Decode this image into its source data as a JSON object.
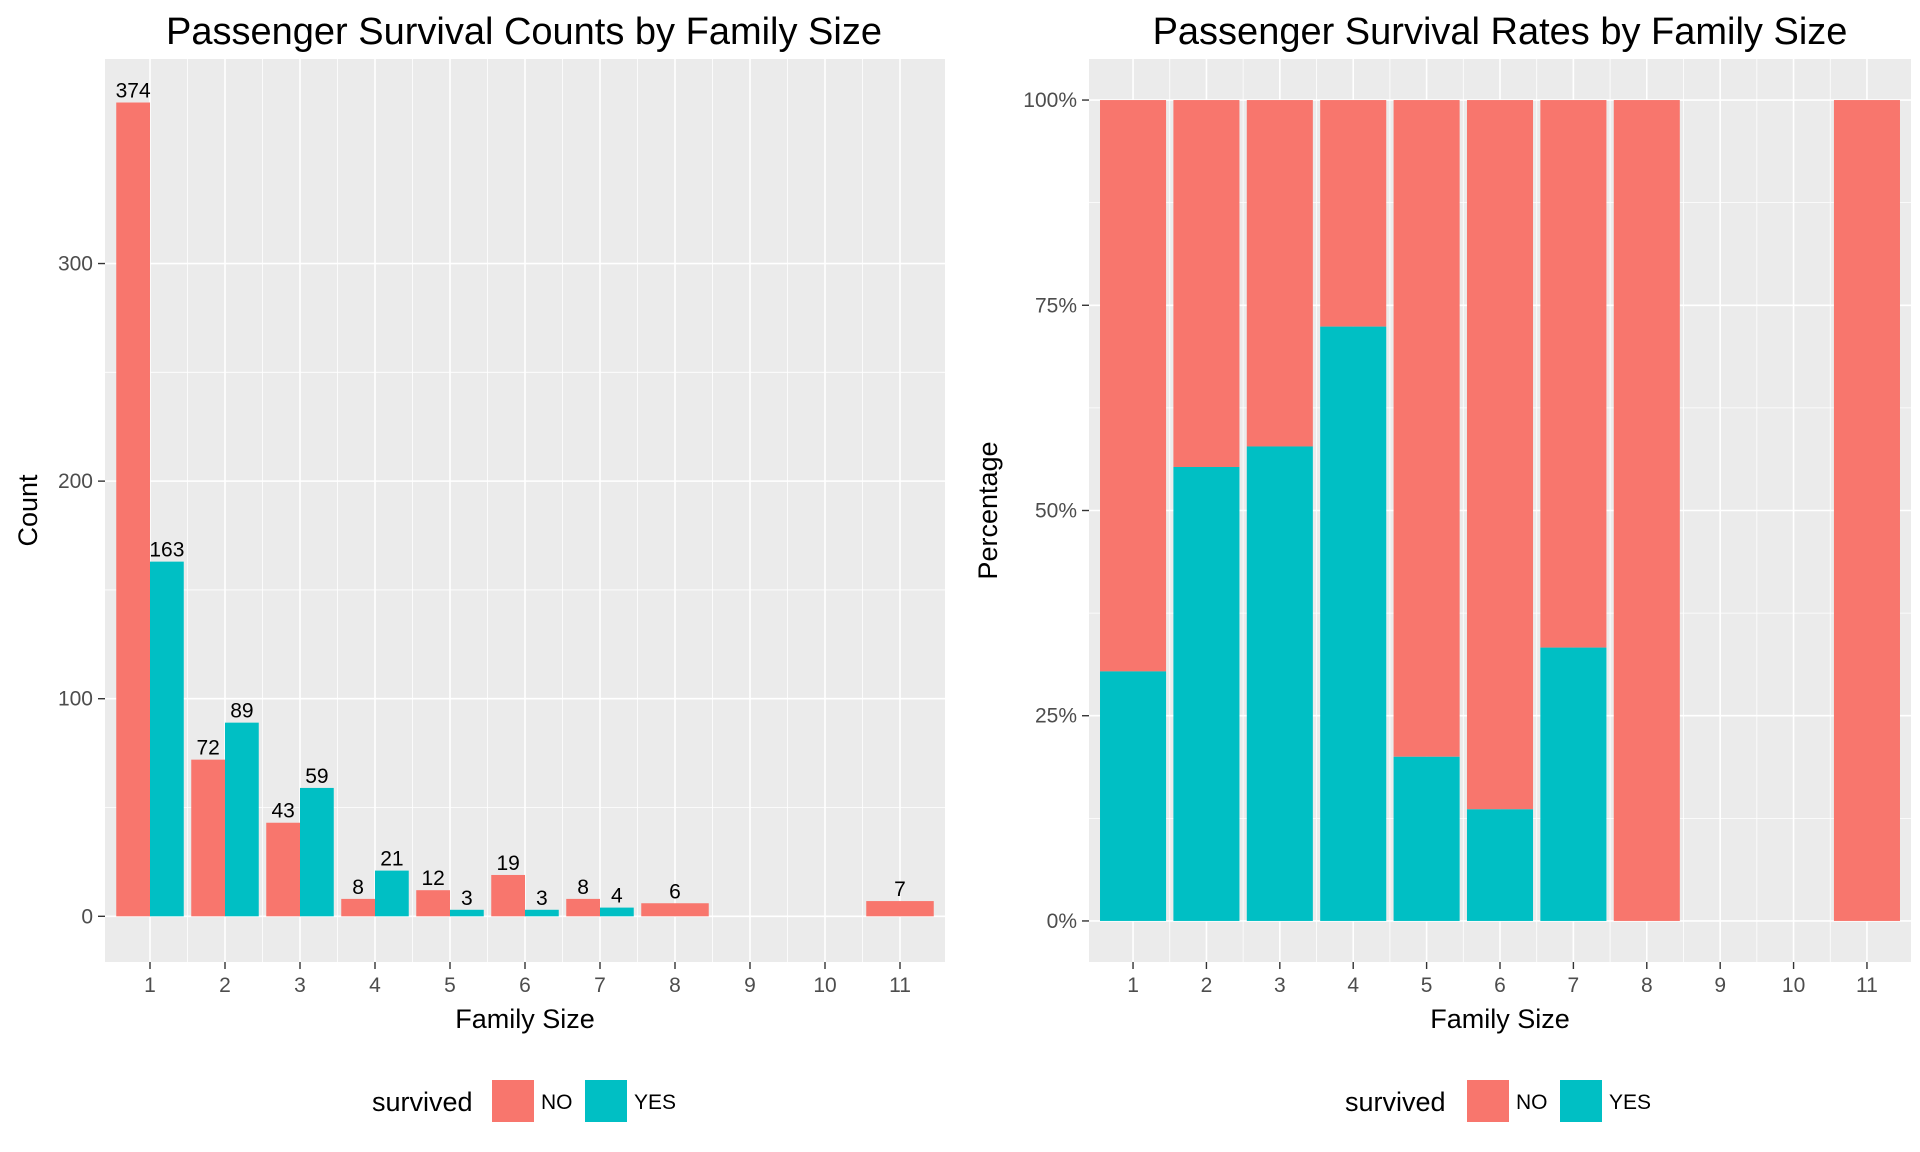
{
  "colors": {
    "no": "#F8766D",
    "yes": "#00BFC4"
  },
  "chart_data": [
    {
      "type": "bar",
      "title": "Passenger Survival Counts by Family Size",
      "xlabel": "Family Size",
      "ylabel": "Count",
      "categories": [
        "1",
        "2",
        "3",
        "4",
        "5",
        "6",
        "7",
        "8",
        "9",
        "10",
        "11"
      ],
      "series": [
        {
          "name": "NO",
          "values": [
            374,
            72,
            43,
            8,
            12,
            19,
            8,
            6,
            null,
            null,
            7
          ]
        },
        {
          "name": "YES",
          "values": [
            163,
            89,
            59,
            21,
            3,
            3,
            4,
            null,
            null,
            null,
            null
          ]
        }
      ],
      "yticks": [
        0,
        100,
        200,
        300
      ],
      "ytick_labels": [
        "0",
        "100",
        "200",
        "300"
      ],
      "ylim": [
        -21,
        394
      ],
      "grid": true,
      "legend": {
        "title": "survived",
        "position": "bottom",
        "entries": [
          "NO",
          "YES"
        ]
      }
    },
    {
      "type": "bar",
      "stacked": "percent",
      "title": "Passenger Survival Rates by Family Size",
      "xlabel": "Family Size",
      "ylabel": "Percentage",
      "categories": [
        "1",
        "2",
        "3",
        "4",
        "5",
        "6",
        "7",
        "8",
        "9",
        "10",
        "11"
      ],
      "series": [
        {
          "name": "NO",
          "values": [
            0.696,
            0.447,
            0.422,
            0.276,
            0.8,
            0.864,
            0.667,
            1.0,
            null,
            null,
            1.0
          ]
        },
        {
          "name": "YES",
          "values": [
            0.304,
            0.553,
            0.578,
            0.724,
            0.2,
            0.136,
            0.333,
            0.0,
            null,
            null,
            0.0
          ]
        }
      ],
      "yticks": [
        0,
        0.25,
        0.5,
        0.75,
        1.0
      ],
      "ytick_labels": [
        "0%",
        "25%",
        "50%",
        "75%",
        "100%"
      ],
      "ylim": [
        -0.05,
        1.05
      ],
      "grid": true,
      "legend": {
        "title": "survived",
        "position": "bottom",
        "entries": [
          "NO",
          "YES"
        ]
      }
    }
  ]
}
